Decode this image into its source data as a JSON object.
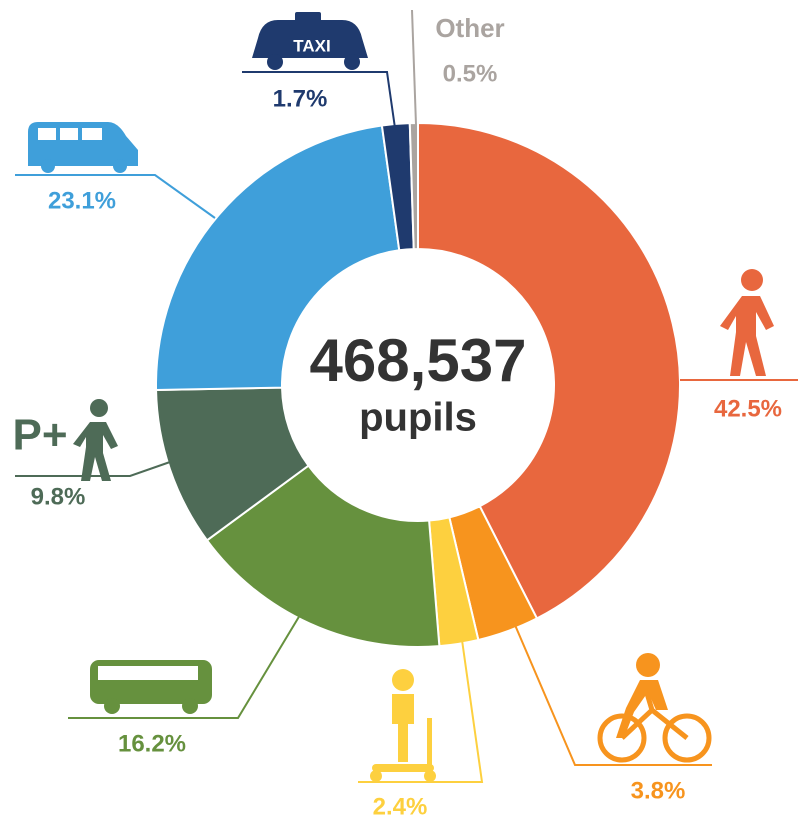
{
  "chart_data": {
    "type": "donut",
    "center_value": "468,537",
    "center_label": "pupils",
    "categories": [
      null,
      null,
      null,
      null,
      "P+",
      null,
      "TAXI",
      "Other"
    ],
    "values": [
      42.5,
      3.8,
      2.4,
      16.2,
      9.8,
      23.1,
      1.7,
      0.5
    ],
    "value_labels": [
      "42.5%",
      "3.8%",
      "2.4%",
      "16.2%",
      "9.8%",
      "23.1%",
      "1.7%",
      "0.5%"
    ],
    "colors": [
      "#e8673e",
      "#f7941e",
      "#fdd03f",
      "#66913e",
      "#4e6b57",
      "#3f9fda",
      "#1f3a6e",
      "#aaa4a0"
    ]
  }
}
